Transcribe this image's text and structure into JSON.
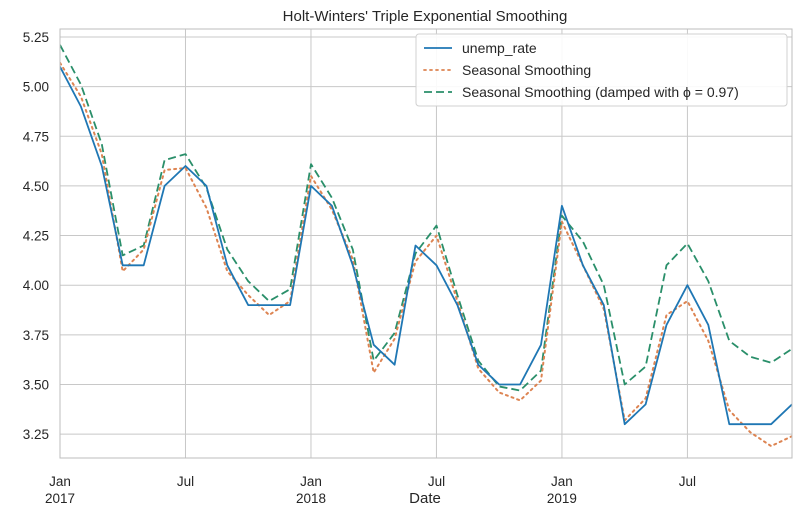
{
  "chart_data": {
    "type": "line",
    "title": "Holt-Winters' Triple Exponential Smoothing",
    "xlabel": "Date",
    "ylabel": "",
    "grid": true,
    "legend_placement": "top-right",
    "ylim": [
      3.13,
      5.29
    ],
    "xlim": [
      "2017-01",
      "2019-12"
    ],
    "yticks": [
      "3.25",
      "3.50",
      "3.75",
      "4.00",
      "4.25",
      "4.50",
      "4.75",
      "5.00",
      "5.25"
    ],
    "xticks": [
      {
        "month": "2017-01",
        "lines": [
          "Jan",
          "2017"
        ]
      },
      {
        "month": "2017-07",
        "lines": [
          "Jul"
        ]
      },
      {
        "month": "2018-01",
        "lines": [
          "Jan",
          "2018"
        ]
      },
      {
        "month": "2018-07",
        "lines": [
          "Jul"
        ]
      },
      {
        "month": "2019-01",
        "lines": [
          "Jan",
          "2019"
        ]
      },
      {
        "month": "2019-07",
        "lines": [
          "Jul"
        ]
      }
    ],
    "x": [
      "2017-01",
      "2017-02",
      "2017-03",
      "2017-04",
      "2017-05",
      "2017-06",
      "2017-07",
      "2017-08",
      "2017-09",
      "2017-10",
      "2017-11",
      "2017-12",
      "2018-01",
      "2018-02",
      "2018-03",
      "2018-04",
      "2018-05",
      "2018-06",
      "2018-07",
      "2018-08",
      "2018-09",
      "2018-10",
      "2018-11",
      "2018-12",
      "2019-01",
      "2019-02",
      "2019-03",
      "2019-04",
      "2019-05",
      "2019-06",
      "2019-07",
      "2019-08",
      "2019-09",
      "2019-10",
      "2019-11",
      "2019-12"
    ],
    "series": [
      {
        "name": "unemp_rate",
        "style": "solid",
        "color": "#1f77b4",
        "values": [
          5.1,
          4.9,
          4.6,
          4.1,
          4.1,
          4.5,
          4.6,
          4.5,
          4.1,
          3.9,
          3.9,
          3.9,
          4.5,
          4.4,
          4.1,
          3.7,
          3.6,
          4.2,
          4.1,
          3.9,
          3.6,
          3.5,
          3.5,
          3.7,
          4.4,
          4.1,
          3.9,
          3.3,
          3.4,
          3.8,
          4.0,
          3.8,
          3.3,
          3.3,
          3.3,
          3.4
        ]
      },
      {
        "name": "Seasonal Smoothing",
        "style": "dotted",
        "color": "#dd8452",
        "values": [
          5.12,
          4.95,
          4.66,
          4.07,
          4.18,
          4.58,
          4.59,
          4.39,
          4.07,
          3.95,
          3.85,
          3.92,
          4.55,
          4.38,
          4.13,
          3.56,
          3.73,
          4.12,
          4.25,
          3.92,
          3.58,
          3.46,
          3.42,
          3.52,
          4.32,
          4.1,
          3.88,
          3.32,
          3.43,
          3.85,
          3.92,
          3.72,
          3.37,
          3.26,
          3.19,
          3.24
        ]
      },
      {
        "name": "Seasonal Smoothing (damped with ϕ = 0.97)",
        "style": "dashed",
        "color": "#2a8f6a",
        "values": [
          5.21,
          5.01,
          4.71,
          4.15,
          4.2,
          4.63,
          4.66,
          4.49,
          4.18,
          4.02,
          3.92,
          3.98,
          4.61,
          4.44,
          4.18,
          3.62,
          3.76,
          4.16,
          4.3,
          3.95,
          3.62,
          3.49,
          3.47,
          3.57,
          4.35,
          4.22,
          4.0,
          3.5,
          3.59,
          4.1,
          4.21,
          4.02,
          3.72,
          3.64,
          3.61,
          3.68
        ]
      }
    ]
  }
}
